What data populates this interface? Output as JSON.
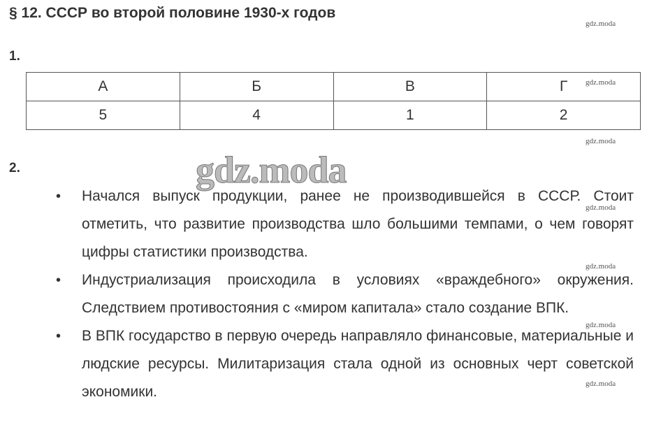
{
  "title": "§ 12. СССР во второй половине 1930-х годов",
  "task1": {
    "number": "1.",
    "headers": [
      "А",
      "Б",
      "В",
      "Г"
    ],
    "values": [
      "5",
      "4",
      "1",
      "2"
    ]
  },
  "task2": {
    "number": "2.",
    "bullets": [
      "Начался выпуск продукции, ранее не производившейся в СССР. Стоит отметить, что развитие производства шло большими темпами, о чем говорят цифры статистики производства.",
      "Индустриализация происходила в условиях «враждебного» окружения. Следствием противостояния с «миром капитала» стало создание ВПК.",
      "В ВПК государство в первую очередь направляло финансовые, материальные и людские ресурсы. Милитаризация стала одной из основных черт советской экономики."
    ]
  },
  "watermark": "gdz.moda"
}
